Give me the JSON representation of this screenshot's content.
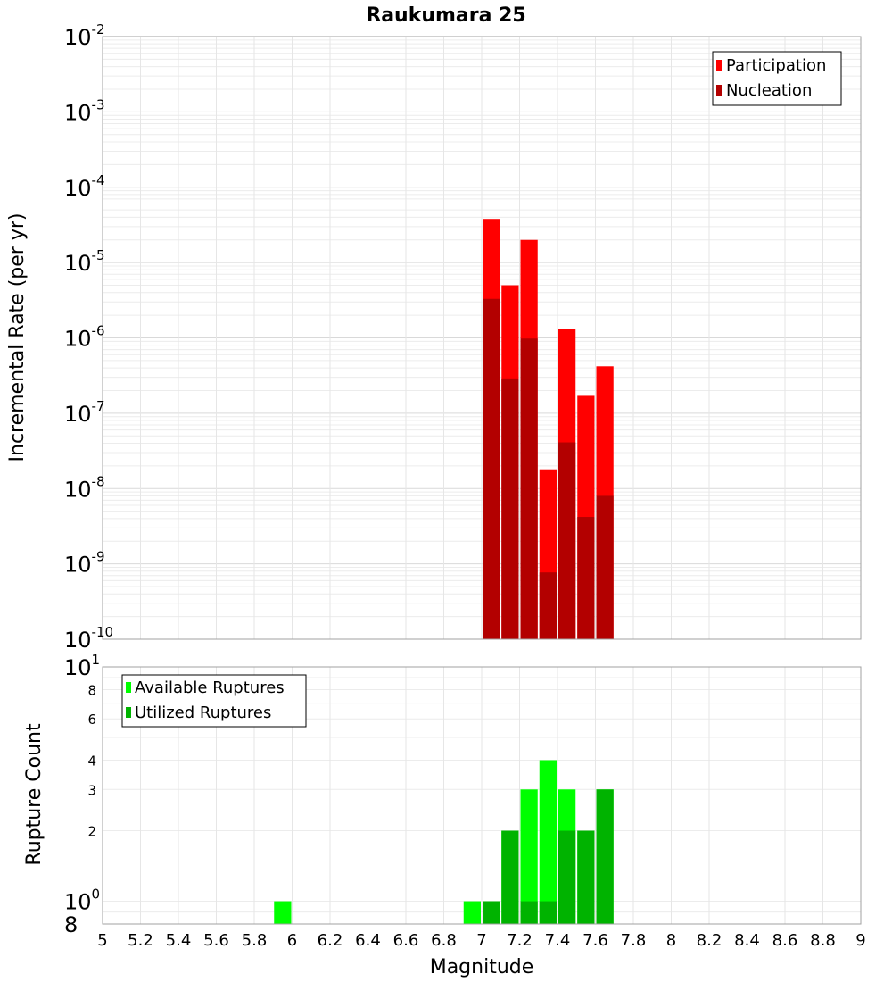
{
  "title": "Raukumara 25",
  "chart_data": [
    {
      "type": "bar",
      "ylabel": "Incremental Rate (per yr)",
      "xlabel": "",
      "yscale": "log",
      "ylim": [
        1e-10,
        0.01
      ],
      "xlim": [
        5,
        9
      ],
      "x": [
        7.05,
        7.15,
        7.25,
        7.35,
        7.45,
        7.55,
        7.65
      ],
      "series": [
        {
          "name": "Participation",
          "color": "#ff0000",
          "values": [
            3.8e-05,
            5e-06,
            2e-05,
            1.8e-08,
            1.3e-06,
            1.7e-07,
            4.2e-07
          ]
        },
        {
          "name": "Nucleation",
          "color": "#b30000",
          "values": [
            3.3e-06,
            2.9e-07,
            9.8e-07,
            7.7e-10,
            4.1e-08,
            4.2e-09,
            8e-09
          ]
        }
      ],
      "legend": "top-right",
      "yticks": [
        {
          "base": "10",
          "exp": "-2",
          "value": 0.01
        },
        {
          "base": "10",
          "exp": "-3",
          "value": 0.001
        },
        {
          "base": "10",
          "exp": "-4",
          "value": 0.0001
        },
        {
          "base": "10",
          "exp": "-5",
          "value": 1e-05
        },
        {
          "base": "10",
          "exp": "-6",
          "value": 1e-06
        },
        {
          "base": "10",
          "exp": "-7",
          "value": 1e-07
        },
        {
          "base": "10",
          "exp": "-8",
          "value": 1e-08
        },
        {
          "base": "10",
          "exp": "-9",
          "value": 1e-09
        },
        {
          "base": "10",
          "exp": "-10",
          "value": 1e-10
        }
      ],
      "grid": true
    },
    {
      "type": "bar",
      "ylabel": "Rupture Count",
      "xlabel": "Magnitude",
      "yscale": "log",
      "ylim": [
        0.8,
        10
      ],
      "xlim": [
        5,
        9
      ],
      "x": [
        5.95,
        6.95,
        7.05,
        7.15,
        7.25,
        7.35,
        7.45,
        7.55,
        7.65
      ],
      "series": [
        {
          "name": "Available Ruptures",
          "color": "#00ff00",
          "values": [
            1,
            1,
            1,
            2,
            3,
            4,
            3,
            2,
            3
          ]
        },
        {
          "name": "Utilized Ruptures",
          "color": "#00b300",
          "values": [
            0,
            0,
            1,
            2,
            1,
            1,
            2,
            2,
            3
          ]
        }
      ],
      "legend": "top-left",
      "yticks_major": [
        {
          "base": "10",
          "exp": "1",
          "value": 10
        },
        {
          "base": "10",
          "exp": "0",
          "value": 1
        },
        {
          "base": "8",
          "exp": "",
          "value": 0.8
        }
      ],
      "yticks_minor": [
        {
          "label": "8",
          "value": 8
        },
        {
          "label": "6",
          "value": 6
        },
        {
          "label": "4",
          "value": 4
        },
        {
          "label": "3",
          "value": 3
        },
        {
          "label": "2",
          "value": 2
        }
      ],
      "xticks": [
        "5",
        "5.2",
        "5.4",
        "5.6",
        "5.8",
        "6",
        "6.2",
        "6.4",
        "6.6",
        "6.8",
        "7",
        "7.2",
        "7.4",
        "7.6",
        "7.8",
        "8",
        "8.2",
        "8.4",
        "8.6",
        "8.8",
        "9"
      ],
      "grid": true
    }
  ]
}
